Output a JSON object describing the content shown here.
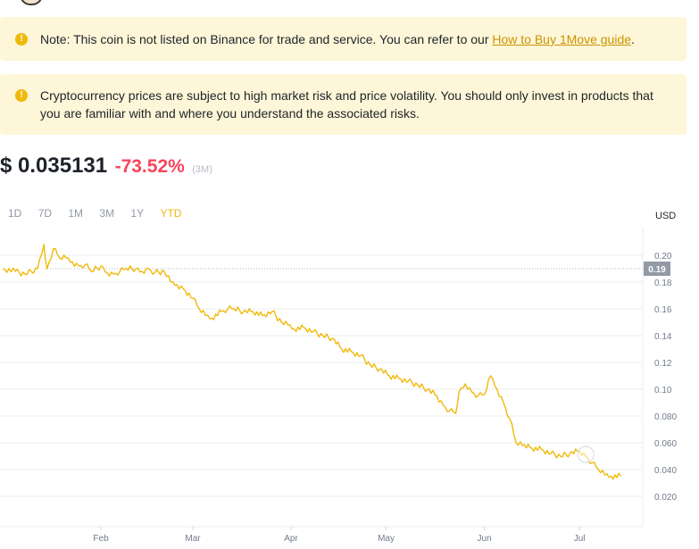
{
  "notices": {
    "listing_text": "Note: This coin is not listed on Binance for trade and service. You can refer to our ",
    "listing_link": "How to Buy 1Move guide",
    "listing_tail": ".",
    "risk_text": "Cryptocurrency prices are subject to high market risk and price volatility. You should only invest in products that you are familiar with and where you understand the associated risks.",
    "icon": "warning-circle-icon"
  },
  "price": {
    "value": "$ 0.035131",
    "change": "-73.52%",
    "period": "(3M)"
  },
  "range_tabs": [
    "1D",
    "7D",
    "1M",
    "3M",
    "1Y",
    "YTD"
  ],
  "active_tab": "YTD",
  "currency": "USD",
  "colors": {
    "line": "#f0b90b",
    "negative": "#f6465d",
    "notice_bg": "#fef6d8",
    "marker": "#929aa5"
  },
  "chart_data": {
    "type": "line",
    "title": "",
    "xlabel": "",
    "ylabel": "",
    "x_ticks": [
      "Feb",
      "Mar",
      "Apr",
      "May",
      "Jun",
      "Jul"
    ],
    "y_ticks": [
      "0.20",
      "0.18",
      "0.16",
      "0.14",
      "0.12",
      "0.10",
      "0.080",
      "0.060",
      "0.040",
      "0.020"
    ],
    "ylim": [
      0,
      0.22
    ],
    "grid": true,
    "current_marker": "0.19",
    "series": [
      {
        "x": [
          "2024-01-01",
          "2024-01-05",
          "2024-01-08",
          "2024-01-12",
          "2024-01-14",
          "2024-01-15",
          "2024-01-17",
          "2024-01-19",
          "2024-01-21",
          "2024-01-23",
          "2024-01-25",
          "2024-01-27",
          "2024-01-29",
          "2024-02-01",
          "2024-02-03",
          "2024-02-05",
          "2024-02-07",
          "2024-02-09",
          "2024-02-12",
          "2024-02-14",
          "2024-02-16",
          "2024-02-18",
          "2024-02-21",
          "2024-02-23",
          "2024-02-25",
          "2024-02-27",
          "2024-03-01",
          "2024-03-03",
          "2024-03-05",
          "2024-03-07",
          "2024-03-10",
          "2024-03-12",
          "2024-03-14",
          "2024-03-17",
          "2024-03-20",
          "2024-03-23",
          "2024-03-26",
          "2024-03-29",
          "2024-03-31",
          "2024-04-02",
          "2024-04-05",
          "2024-04-08",
          "2024-04-11",
          "2024-04-14",
          "2024-04-17",
          "2024-04-20",
          "2024-04-23",
          "2024-04-26",
          "2024-04-29",
          "2024-05-02",
          "2024-05-05",
          "2024-05-08",
          "2024-05-11",
          "2024-05-14",
          "2024-05-17",
          "2024-05-19",
          "2024-05-21",
          "2024-05-23",
          "2024-05-24",
          "2024-05-26",
          "2024-05-28",
          "2024-05-30",
          "2024-06-01",
          "2024-06-03",
          "2024-06-05",
          "2024-06-07",
          "2024-06-09",
          "2024-06-11",
          "2024-06-13",
          "2024-06-16",
          "2024-06-19",
          "2024-06-22",
          "2024-06-25",
          "2024-06-28",
          "2024-07-01",
          "2024-07-03",
          "2024-07-05",
          "2024-07-07",
          "2024-07-09",
          "2024-07-11",
          "2024-07-14"
        ],
        "y": [
          0.19,
          0.188,
          0.186,
          0.19,
          0.208,
          0.19,
          0.205,
          0.198,
          0.198,
          0.195,
          0.192,
          0.193,
          0.188,
          0.192,
          0.187,
          0.186,
          0.188,
          0.19,
          0.19,
          0.188,
          0.19,
          0.187,
          0.188,
          0.18,
          0.178,
          0.175,
          0.168,
          0.16,
          0.155,
          0.153,
          0.158,
          0.16,
          0.16,
          0.158,
          0.158,
          0.155,
          0.158,
          0.15,
          0.148,
          0.145,
          0.146,
          0.143,
          0.14,
          0.138,
          0.13,
          0.128,
          0.125,
          0.118,
          0.115,
          0.11,
          0.108,
          0.106,
          0.103,
          0.1,
          0.095,
          0.088,
          0.084,
          0.082,
          0.098,
          0.104,
          0.098,
          0.095,
          0.096,
          0.11,
          0.1,
          0.09,
          0.078,
          0.06,
          0.058,
          0.056,
          0.055,
          0.052,
          0.05,
          0.052,
          0.054,
          0.05,
          0.045,
          0.04,
          0.036,
          0.035,
          0.035
        ]
      }
    ]
  }
}
